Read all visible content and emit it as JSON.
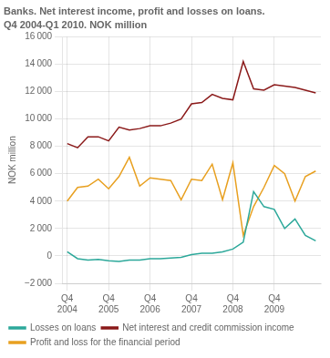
{
  "chart_data": {
    "type": "line",
    "title": "Banks. Net interest income, profit and losses on loans.",
    "subtitle": "Q4 2004-Q1 2010. NOK million",
    "ylabel": "NOK million",
    "categories": [
      "Q4\n2004",
      null,
      null,
      null,
      "Q4\n2005",
      null,
      null,
      null,
      "Q4\n2006",
      null,
      null,
      null,
      "Q4\n2007",
      null,
      null,
      null,
      "Q4\n2008",
      null,
      null,
      null,
      "Q4\n2009",
      null,
      null,
      null,
      null
    ],
    "series": [
      {
        "name": "Losses on loans",
        "color": "#2ca89a",
        "values": [
          300,
          -200,
          -300,
          -250,
          -350,
          -400,
          -300,
          -300,
          -200,
          -200,
          -150,
          -100,
          100,
          200,
          200,
          300,
          500,
          1000,
          4700,
          3600,
          3400,
          2000,
          2700,
          1500,
          1100
        ]
      },
      {
        "name": "Net interest and credit commission income",
        "color": "#8b1a1a",
        "values": [
          8200,
          7900,
          8700,
          8700,
          8400,
          9400,
          9200,
          9300,
          9500,
          9500,
          9700,
          10000,
          11100,
          11200,
          11800,
          11500,
          11400,
          14200,
          12200,
          12100,
          12500,
          12400,
          12300,
          12100,
          11900
        ]
      },
      {
        "name": "Profit and loss for the financial period",
        "color": "#e8a020",
        "values": [
          4000,
          5000,
          5100,
          5600,
          4900,
          5800,
          7200,
          5100,
          5700,
          5600,
          5500,
          4100,
          5600,
          5500,
          6700,
          4100,
          6800,
          1500,
          3600,
          5000,
          6600,
          6000,
          4000,
          5800,
          6200
        ]
      }
    ],
    "ylim": [
      -2000,
      16000
    ],
    "yticks": [
      {
        "value": -2000,
        "label": "−2 000"
      },
      0,
      {
        "value": 2000,
        "label": "2 000"
      },
      {
        "value": 4000,
        "label": "4 000"
      },
      {
        "value": 6000,
        "label": "6 000"
      },
      {
        "value": 8000,
        "label": "8 000"
      },
      {
        "value": 10000,
        "label": "10 000"
      },
      {
        "value": 12000,
        "label": "12 000"
      },
      {
        "value": 14000,
        "label": "14 000"
      },
      {
        "value": 16000,
        "label": "16 000"
      }
    ],
    "grid": true,
    "legend": "bottom"
  }
}
